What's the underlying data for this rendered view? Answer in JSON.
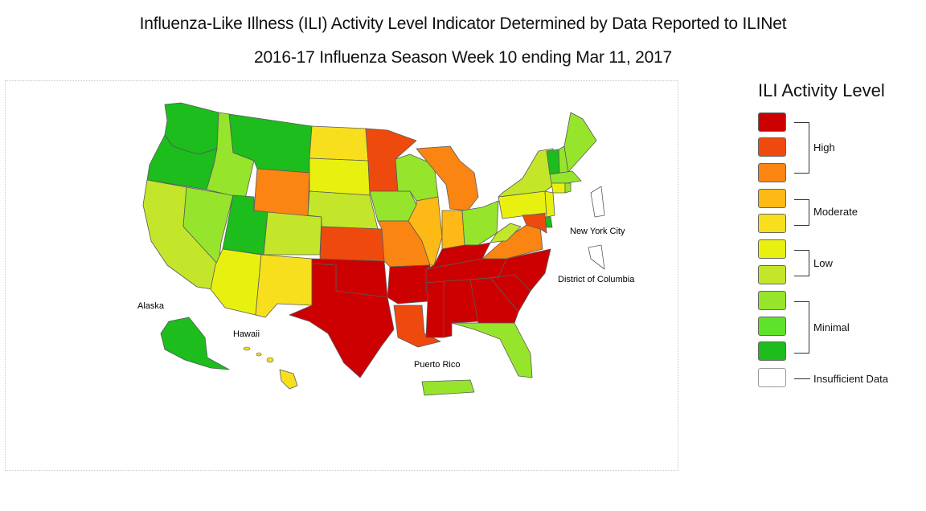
{
  "title_line1": "Influenza-Like Illness (ILI) Activity Level Indicator Determined by Data Reported to ILINet",
  "title_line2": "2016-17 Influenza Season Week 10 ending Mar 11, 2017",
  "legend": {
    "title": "ILI Activity Level",
    "colors": [
      "#cc0000",
      "#ef4a0e",
      "#fb8512",
      "#fdb915",
      "#f7df1e",
      "#e8f00f",
      "#c4e62a",
      "#96e52c",
      "#5fe22a",
      "#1cbd1c",
      "#ffffff"
    ],
    "groups": [
      "High",
      "Moderate",
      "Low",
      "Minimal",
      "Insufficient Data"
    ]
  },
  "map_labels": {
    "alaska": "Alaska",
    "hawaii": "Hawaii",
    "puerto_rico": "Puerto Rico",
    "nyc": "New York City",
    "dc": "District of Columbia"
  },
  "state_levels": {
    "WA": 9,
    "OR": 9,
    "CA": 6,
    "NV": 7,
    "ID": 7,
    "MT": 9,
    "WY": 2,
    "UT": 9,
    "AZ": 5,
    "CO": 6,
    "NM": 4,
    "ND": 4,
    "SD": 5,
    "NE": 6,
    "KS": 1,
    "OK": 0,
    "TX": 0,
    "MN": 1,
    "IA": 7,
    "MO": 2,
    "AR": 0,
    "LA": 1,
    "WI": 7,
    "IL": 3,
    "MI": 2,
    "IN": 3,
    "OH": 7,
    "KY": 0,
    "TN": 0,
    "MS": 0,
    "AL": 0,
    "GA": 0,
    "FL": 7,
    "SC": 0,
    "NC": 0,
    "VA": 2,
    "WV": 6,
    "PA": 5,
    "NY": 6,
    "VT": 9,
    "NH": 7,
    "ME": 7,
    "MA": 7,
    "CT": 5,
    "RI": 7,
    "NJ": 5,
    "DE": 9,
    "MD": 1,
    "AK": 9,
    "HI": 4,
    "PR": 7,
    "NYC": 10,
    "DC": 10
  }
}
